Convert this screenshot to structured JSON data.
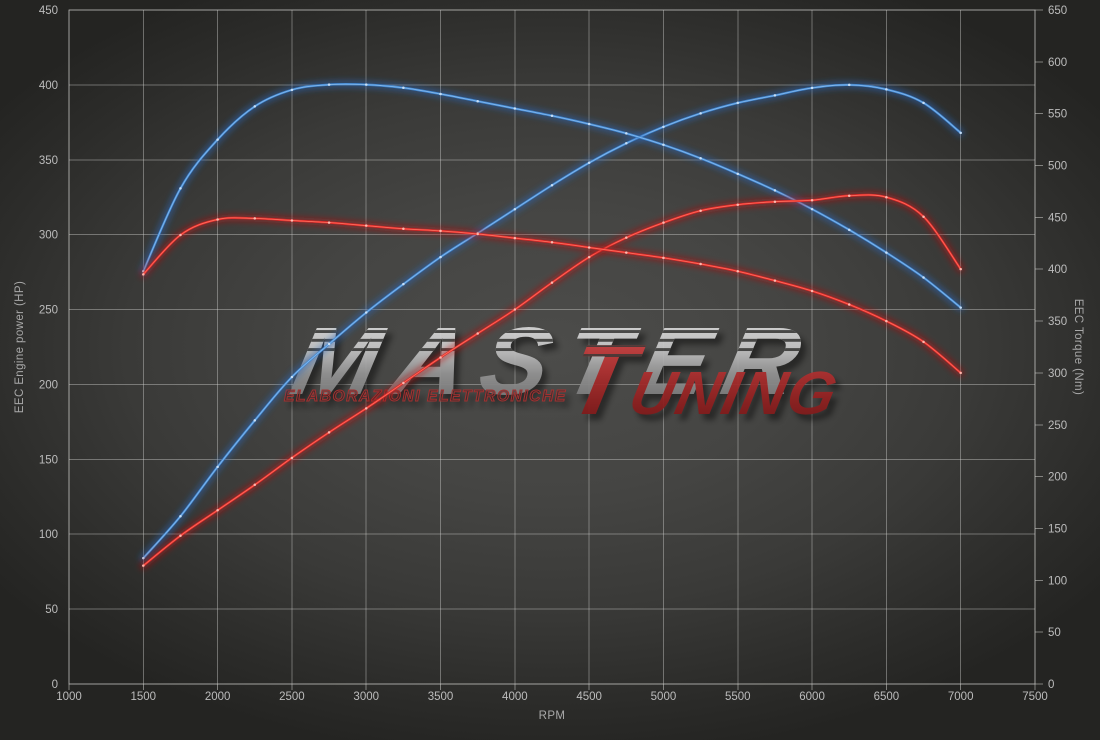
{
  "chart": {
    "xlabel": "RPM",
    "ylabel_left": "EEC Engine power (HP)",
    "ylabel_right": "EEC Torque (Nm)"
  },
  "watermark": {
    "line1": "MASTER",
    "line2_initial": "T",
    "line2_rest": "UNING",
    "subtitle": "ELABORAZIONI ELETTRONICHE"
  },
  "colors": {
    "background_center": "#4c4c4a",
    "background_edge": "#242422",
    "grid": "#d2d2d0",
    "tick_text": "#bcbcbc",
    "axis_title_text": "#a9a9a9",
    "blue": "#3f86d2",
    "red": "#e02626"
  },
  "chart_data": {
    "type": "line",
    "grid": true,
    "legend": "none",
    "xlabel": "RPM",
    "ylabel_left": "EEC Engine power (HP)",
    "ylabel_right": "EEC Torque (Nm)",
    "xlim": [
      1000,
      7500
    ],
    "left_lim": [
      0,
      450
    ],
    "right_lim": [
      0,
      650
    ],
    "x_ticks": [
      1000,
      1500,
      2000,
      2500,
      3000,
      3500,
      4000,
      4500,
      5000,
      5500,
      6000,
      6500,
      7000,
      7500
    ],
    "left_ticks": [
      0,
      50,
      100,
      150,
      200,
      250,
      300,
      350,
      400,
      450
    ],
    "right_ticks": [
      0,
      50,
      100,
      150,
      200,
      250,
      300,
      350,
      400,
      450,
      500,
      550,
      600,
      650
    ],
    "x": [
      1500,
      1750,
      2000,
      2250,
      2500,
      2750,
      3000,
      3250,
      3500,
      3750,
      4000,
      4250,
      4500,
      4750,
      5000,
      5250,
      5500,
      5750,
      6000,
      6250,
      6500,
      6750,
      7000
    ],
    "series": [
      {
        "name": "power-blue-hp",
        "axis": "left",
        "colors": {
          "glow": "#2a66bb",
          "line": "#3f86d2",
          "core": "#8fc0ef",
          "dot": "#cfe4fa"
        },
        "values": [
          84,
          112,
          145,
          176,
          205,
          227,
          248,
          267,
          285,
          301,
          317,
          333,
          348,
          361,
          372,
          381,
          388,
          393,
          398,
          400,
          397,
          388,
          368
        ]
      },
      {
        "name": "torque-blue-nm",
        "axis": "right",
        "colors": {
          "glow": "#2a66bb",
          "line": "#3f86d2",
          "core": "#8fc0ef",
          "dot": "#cfe4fa"
        },
        "values": [
          398,
          478,
          525,
          557,
          573,
          578,
          578,
          575,
          569,
          562,
          555,
          548,
          540,
          531,
          520,
          507,
          492,
          476,
          458,
          438,
          416,
          392,
          363
        ]
      },
      {
        "name": "power-red-hp",
        "axis": "left",
        "colors": {
          "glow": "#bb1111",
          "line": "#e02626",
          "core": "#ff7a66",
          "dot": "#ffc2b8"
        },
        "values": [
          79,
          99,
          116,
          133,
          151,
          168,
          184,
          201,
          218,
          234,
          250,
          268,
          285,
          298,
          308,
          316,
          320,
          322,
          323,
          326,
          325,
          312,
          277
        ]
      },
      {
        "name": "torque-red-nm",
        "axis": "right",
        "colors": {
          "glow": "#bb1111",
          "line": "#e02626",
          "core": "#ff7a66",
          "dot": "#ffc2b8"
        },
        "values": [
          395,
          433,
          448,
          449,
          447,
          445,
          442,
          439,
          437,
          434,
          430,
          426,
          421,
          416,
          411,
          405,
          398,
          389,
          379,
          366,
          350,
          330,
          300
        ]
      }
    ]
  }
}
